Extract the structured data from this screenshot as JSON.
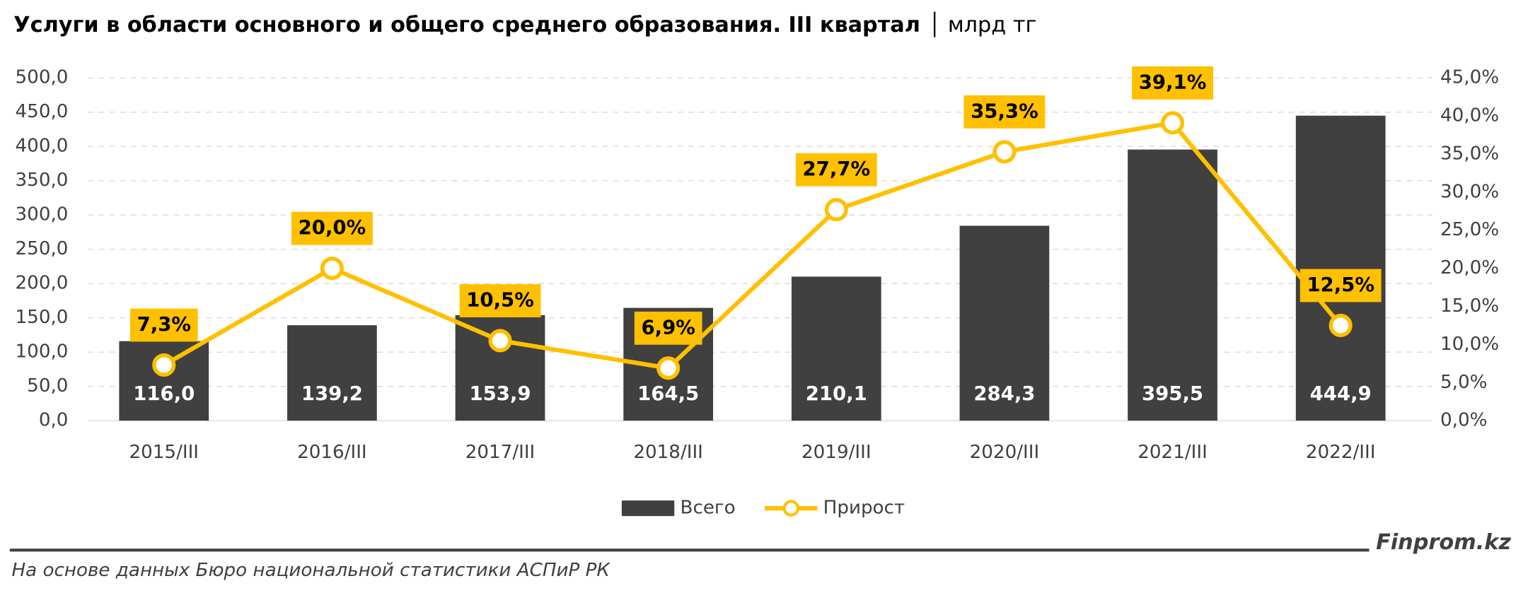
{
  "chart_data": {
    "type": "bar_line",
    "title": "Услуги в области основного и общего среднего образования. III квартал",
    "title_unit": "│ млрд тг",
    "categories": [
      "2015/III",
      "2016/III",
      "2017/III",
      "2018/III",
      "2019/III",
      "2020/III",
      "2021/III",
      "2022/III"
    ],
    "series": [
      {
        "name": "Всего",
        "type": "bar",
        "color": "#404040",
        "values": [
          116.0,
          139.2,
          153.9,
          164.5,
          210.1,
          284.3,
          395.5,
          444.9
        ],
        "value_labels": [
          "116,0",
          "139,2",
          "153,9",
          "164,5",
          "210,1",
          "284,3",
          "395,5",
          "444,9"
        ]
      },
      {
        "name": "Прирост",
        "type": "line",
        "axis": "y2",
        "color": "#ffc000",
        "values": [
          7.3,
          20.0,
          10.5,
          6.9,
          27.7,
          35.3,
          39.1,
          12.5
        ],
        "value_labels": [
          "7,3%",
          "20,0%",
          "10,5%",
          "6,9%",
          "27,7%",
          "35,3%",
          "39,1%",
          "12,5%"
        ]
      }
    ],
    "ylim": [
      0,
      500
    ],
    "yticks": [
      {
        "value": 0,
        "label": "0,0"
      },
      {
        "value": 50,
        "label": "50,0"
      },
      {
        "value": 100,
        "label": "100,0"
      },
      {
        "value": 150,
        "label": "150,0"
      },
      {
        "value": 200,
        "label": "200,0"
      },
      {
        "value": 250,
        "label": "250,0"
      },
      {
        "value": 300,
        "label": "300,0"
      },
      {
        "value": 350,
        "label": "350,0"
      },
      {
        "value": 400,
        "label": "400,0"
      },
      {
        "value": 450,
        "label": "450,0"
      },
      {
        "value": 500,
        "label": "500,0"
      }
    ],
    "y2lim": [
      0,
      45
    ],
    "y2ticks": [
      {
        "value": 0,
        "label": "0,0%"
      },
      {
        "value": 5,
        "label": "5,0%"
      },
      {
        "value": 10,
        "label": "10,0%"
      },
      {
        "value": 15,
        "label": "15,0%"
      },
      {
        "value": 20,
        "label": "20,0%"
      },
      {
        "value": 25,
        "label": "25,0%"
      },
      {
        "value": 30,
        "label": "30,0%"
      },
      {
        "value": 35,
        "label": "35,0%"
      },
      {
        "value": 40,
        "label": "40,0%"
      },
      {
        "value": 45,
        "label": "45,0%"
      }
    ],
    "grid": true,
    "legend": "bottom",
    "brand": "Finprom.kz",
    "source": "На основе данных Бюро национальной статистики АСПиР РК"
  }
}
